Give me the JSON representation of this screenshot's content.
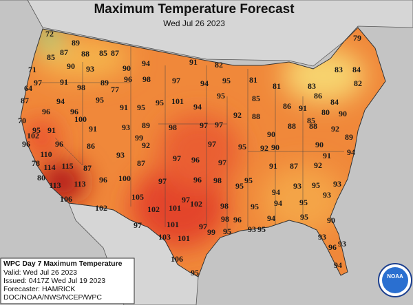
{
  "header": {
    "title": "Maximum Temperature Forecast",
    "subtitle": "Wed Jul 26 2023"
  },
  "temperatures": [
    72,
    89,
    85,
    87,
    88,
    85,
    87,
    90,
    93,
    90,
    94,
    91,
    82,
    79,
    71,
    64,
    97,
    91,
    98,
    89,
    77,
    96,
    98,
    97,
    94,
    95,
    81,
    81,
    83,
    84,
    83,
    82,
    87,
    96,
    94,
    95,
    91,
    95,
    95,
    101,
    94,
    95,
    85,
    86,
    86,
    84,
    90,
    70,
    96,
    100,
    93,
    89,
    98,
    97,
    97,
    92,
    88,
    91,
    80,
    85,
    90,
    88,
    88,
    92,
    91,
    95,
    102,
    96,
    91,
    99,
    92,
    96,
    110,
    86,
    97,
    95,
    92,
    90,
    90,
    91,
    94,
    89,
    78,
    114,
    115,
    87,
    93,
    87,
    97,
    96,
    97,
    91,
    87,
    92,
    80,
    113,
    113,
    96,
    100,
    97,
    96,
    95,
    94,
    93,
    95,
    93,
    106,
    105,
    97,
    98,
    95,
    94,
    95,
    93,
    102,
    102,
    101,
    102,
    98,
    95,
    97,
    101,
    97,
    98,
    96,
    93,
    95,
    94,
    95,
    90,
    103,
    101,
    99,
    95,
    93,
    96,
    93,
    106,
    94,
    95
  ],
  "info_box": {
    "title": "WPC Day 7 Maximum Temperature",
    "lines": [
      "Valid: Wed Jul 26 2023",
      "Issued: 0417Z Wed Jul 19 2023",
      "Forecaster: HAMRICK",
      "DOC/NOAA/NWS/NCEP/WPC"
    ]
  },
  "logo": "NOAA"
}
